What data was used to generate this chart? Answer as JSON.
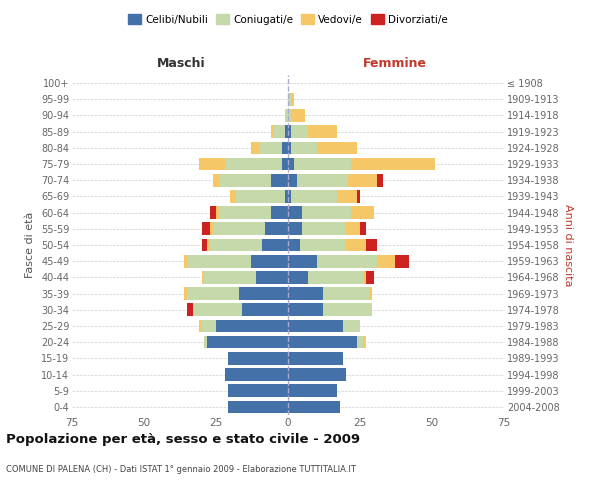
{
  "age_groups": [
    "0-4",
    "5-9",
    "10-14",
    "15-19",
    "20-24",
    "25-29",
    "30-34",
    "35-39",
    "40-44",
    "45-49",
    "50-54",
    "55-59",
    "60-64",
    "65-69",
    "70-74",
    "75-79",
    "80-84",
    "85-89",
    "90-94",
    "95-99",
    "100+"
  ],
  "birth_years": [
    "2004-2008",
    "1999-2003",
    "1994-1998",
    "1989-1993",
    "1984-1988",
    "1979-1983",
    "1974-1978",
    "1969-1973",
    "1964-1968",
    "1959-1963",
    "1954-1958",
    "1949-1953",
    "1944-1948",
    "1939-1943",
    "1934-1938",
    "1929-1933",
    "1924-1928",
    "1919-1923",
    "1914-1918",
    "1909-1913",
    "≤ 1908"
  ],
  "maschi": {
    "celibi": [
      21,
      21,
      22,
      21,
      28,
      25,
      16,
      17,
      11,
      13,
      9,
      8,
      6,
      1,
      6,
      2,
      2,
      1,
      0,
      0,
      0
    ],
    "coniugati": [
      0,
      0,
      0,
      0,
      1,
      5,
      17,
      18,
      18,
      22,
      18,
      18,
      18,
      17,
      18,
      20,
      8,
      4,
      1,
      0,
      0
    ],
    "vedovi": [
      0,
      0,
      0,
      0,
      0,
      1,
      0,
      1,
      1,
      1,
      1,
      1,
      1,
      2,
      2,
      9,
      3,
      1,
      0,
      0,
      0
    ],
    "divorziati": [
      0,
      0,
      0,
      0,
      0,
      0,
      2,
      0,
      0,
      0,
      2,
      3,
      2,
      0,
      0,
      0,
      0,
      0,
      0,
      0,
      0
    ]
  },
  "femmine": {
    "nubili": [
      18,
      17,
      20,
      19,
      24,
      19,
      12,
      12,
      7,
      10,
      4,
      5,
      5,
      1,
      3,
      2,
      1,
      1,
      0,
      0,
      0
    ],
    "coniugate": [
      0,
      0,
      0,
      0,
      2,
      6,
      17,
      16,
      19,
      21,
      16,
      15,
      17,
      16,
      18,
      20,
      9,
      6,
      1,
      1,
      0
    ],
    "vedove": [
      0,
      0,
      0,
      0,
      1,
      0,
      0,
      1,
      1,
      6,
      7,
      5,
      8,
      7,
      10,
      29,
      14,
      10,
      5,
      1,
      0
    ],
    "divorziate": [
      0,
      0,
      0,
      0,
      0,
      0,
      0,
      0,
      3,
      5,
      4,
      2,
      0,
      1,
      2,
      0,
      0,
      0,
      0,
      0,
      0
    ]
  },
  "colors": {
    "celibi": "#4472a8",
    "coniugati": "#c5d9aa",
    "vedovi": "#f5c766",
    "divorziati": "#cc2222"
  },
  "xlim": 75,
  "title": "Popolazione per età, sesso e stato civile - 2009",
  "subtitle": "COMUNE DI PALENA (CH) - Dati ISTAT 1° gennaio 2009 - Elaborazione TUTTITALIA.IT",
  "ylabel_left": "Fasce di età",
  "ylabel_right": "Anni di nascita",
  "xlabel_maschi": "Maschi",
  "xlabel_femmine": "Femmine",
  "legend_labels": [
    "Celibi/Nubili",
    "Coniugati/e",
    "Vedovi/e",
    "Divorziati/e"
  ]
}
